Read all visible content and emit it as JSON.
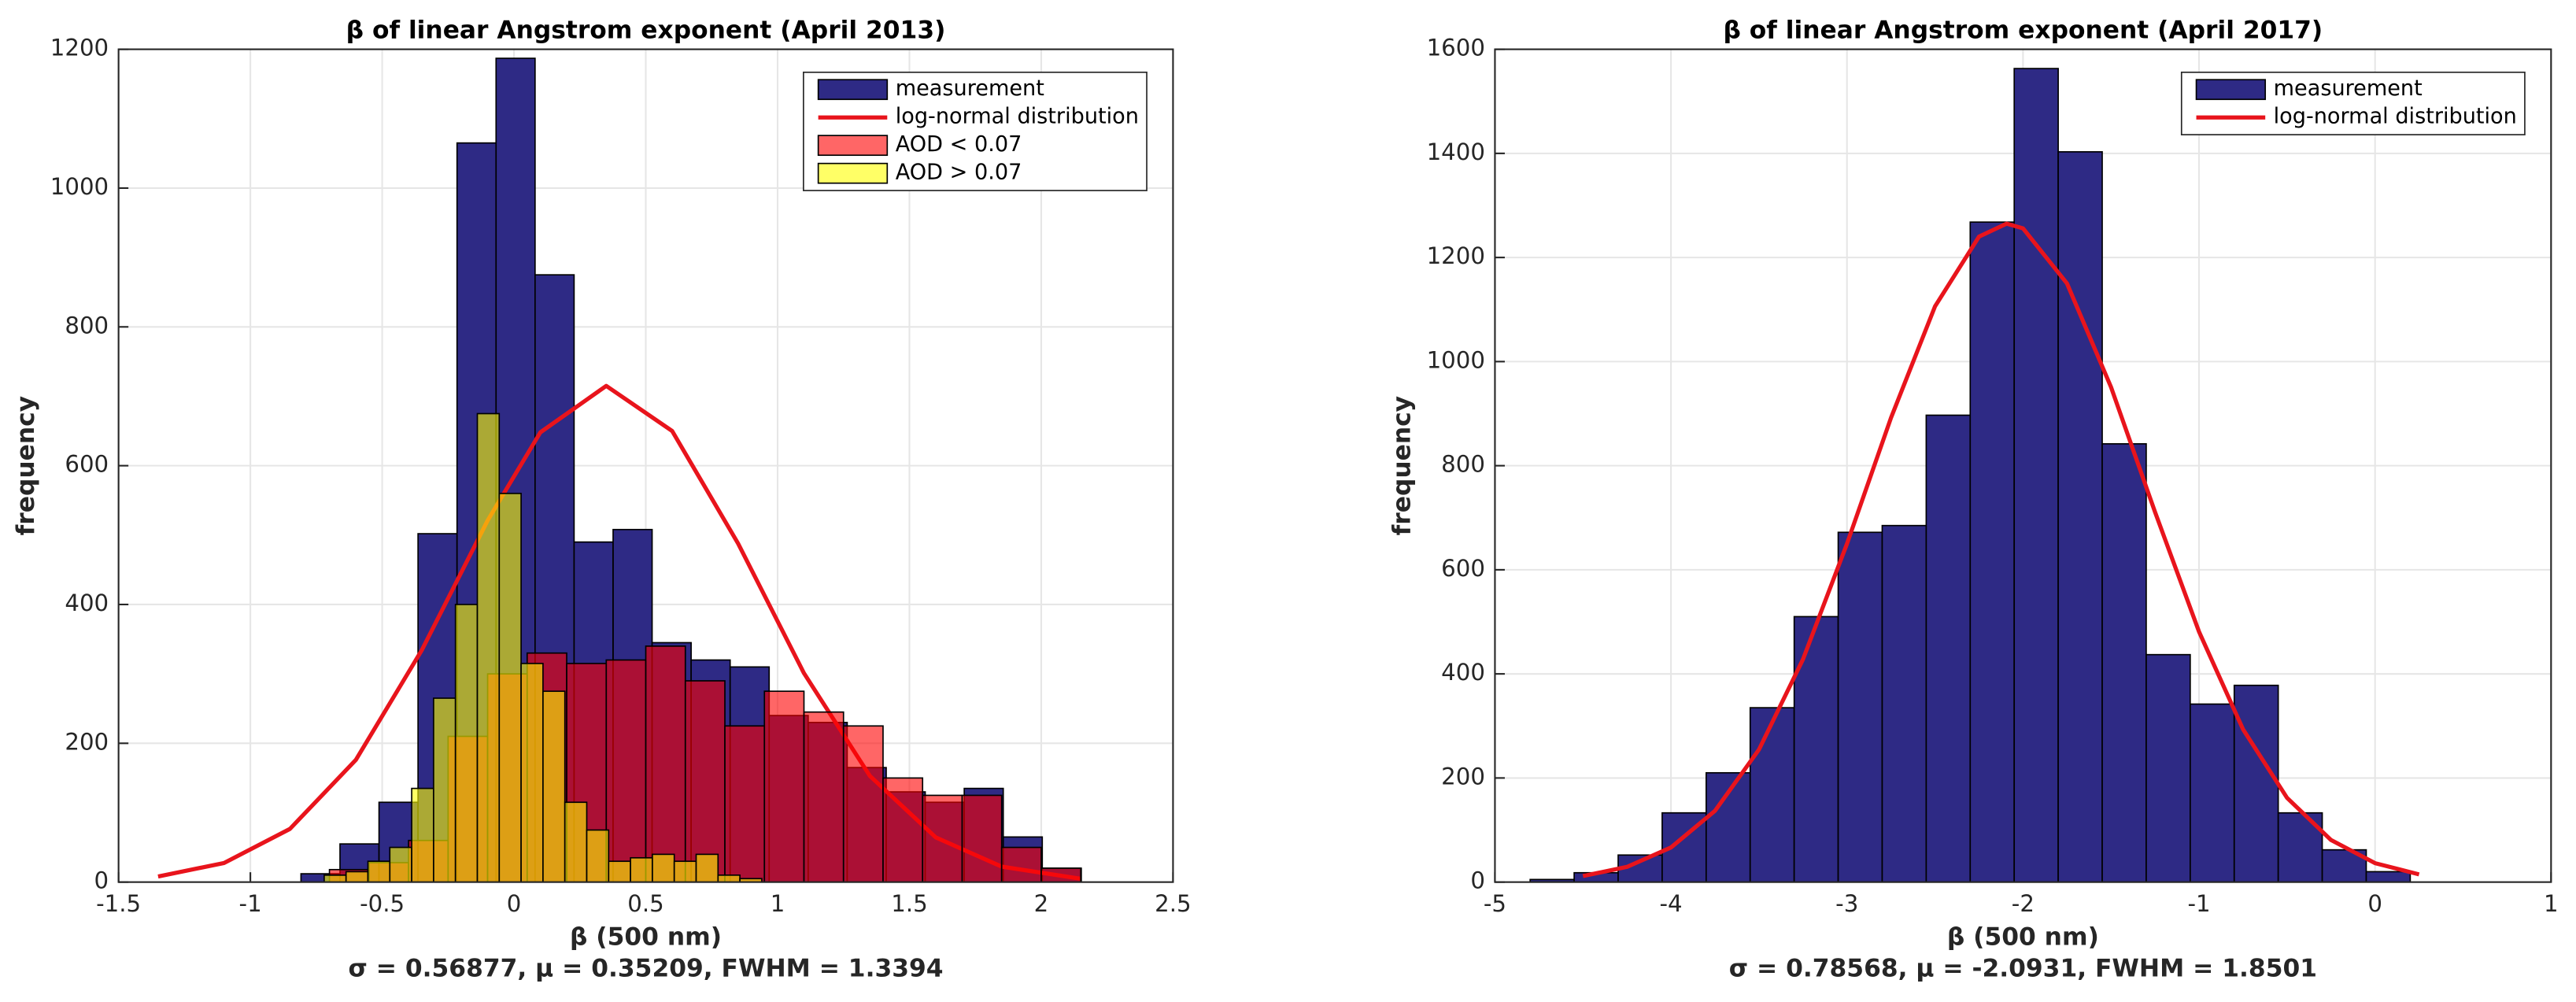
{
  "chart_data": [
    {
      "type": "histogram",
      "title": "β of linear Angstrom exponent (April 2013)",
      "xlabel": "β (500 nm)",
      "ylabel": "frequency",
      "subtitle": "σ = 0.56877, μ = 0.35209, FWHM = 1.3394",
      "xlim": [
        -1.5,
        2.5
      ],
      "xticks": [
        -1.5,
        -1,
        -0.5,
        0,
        0.5,
        1,
        1.5,
        2,
        2.5
      ],
      "ylim": [
        0,
        1200
      ],
      "yticks": [
        0,
        200,
        400,
        600,
        800,
        1000,
        1200
      ],
      "grid": true,
      "legend": "northeast",
      "series": [
        {
          "name": "measurement",
          "color": "#2e2a85",
          "alpha": 1,
          "bins": [
            -0.808,
            -0.66,
            -0.512,
            -0.364,
            -0.216,
            -0.068,
            0.08,
            0.228,
            0.376,
            0.524,
            0.672,
            0.82,
            0.968,
            1.116,
            1.264,
            1.412,
            1.56,
            1.708,
            1.856,
            2.004,
            2.152
          ],
          "values": [
            12,
            55,
            115,
            502,
            1065,
            1187,
            875,
            490,
            508,
            345,
            320,
            310,
            240,
            230,
            165,
            130,
            115,
            135,
            65,
            20
          ]
        },
        {
          "name": "log-normal distribution",
          "type": "line",
          "color": "#e8141c",
          "x": [
            -1.35,
            -1.1,
            -0.85,
            -0.6,
            -0.35,
            -0.1,
            0.1,
            0.35,
            0.6,
            0.85,
            1.1,
            1.35,
            1.6,
            1.85,
            2.15
          ],
          "values": [
            8.1,
            27.5,
            76.6,
            176,
            334,
            521,
            648,
            715,
            650,
            488,
            301,
            153,
            64.4,
            22.3,
            4.8
          ]
        },
        {
          "name": "AOD < 0.07",
          "color": "#ff0000",
          "alpha": 0.6,
          "bins": [
            -0.7,
            -0.55,
            -0.4,
            -0.25,
            -0.1,
            0.05,
            0.2,
            0.35,
            0.5,
            0.65,
            0.8,
            0.95,
            1.1,
            1.25,
            1.4,
            1.55,
            1.7,
            1.85,
            2.0,
            2.15
          ],
          "values": [
            18,
            28,
            60,
            210,
            300,
            330,
            315,
            320,
            340,
            290,
            225,
            275,
            245,
            225,
            150,
            125,
            125,
            50,
            20
          ]
        },
        {
          "name": "AOD > 0.07",
          "color": "#ffff00",
          "alpha": 0.6,
          "bins": [
            -0.72,
            -0.637,
            -0.554,
            -0.471,
            -0.388,
            -0.305,
            -0.222,
            -0.139,
            -0.056,
            0.027,
            0.11,
            0.193,
            0.276,
            0.359,
            0.442,
            0.525,
            0.608,
            0.691,
            0.774,
            0.857,
            0.94
          ],
          "values": [
            10,
            15,
            30,
            50,
            135,
            265,
            400,
            675,
            560,
            315,
            275,
            115,
            75,
            30,
            35,
            40,
            30,
            40,
            10,
            5
          ]
        }
      ]
    },
    {
      "type": "histogram",
      "title": "β of linear Angstrom exponent (April 2017)",
      "xlabel": "β (500 nm)",
      "ylabel": "frequency",
      "subtitle": "σ = 0.78568, μ = -2.0931, FWHM = 1.8501",
      "xlim": [
        -5,
        1
      ],
      "xticks": [
        -5,
        -4,
        -3,
        -2,
        -1,
        0,
        1
      ],
      "ylim": [
        0,
        1600
      ],
      "yticks": [
        0,
        200,
        400,
        600,
        800,
        1000,
        1200,
        1400,
        1600
      ],
      "grid": true,
      "legend": "northeast",
      "series": [
        {
          "name": "measurement",
          "color": "#2e2a85",
          "alpha": 1,
          "bins": [
            -4.8,
            -4.55,
            -4.3,
            -4.05,
            -3.8,
            -3.55,
            -3.3,
            -3.05,
            -2.8,
            -2.55,
            -2.3,
            -2.05,
            -1.8,
            -1.55,
            -1.3,
            -1.05,
            -0.8,
            -0.55,
            -0.3,
            -0.05,
            0.2
          ],
          "values": [
            5,
            18,
            52,
            133,
            210,
            335,
            510,
            672,
            685,
            897,
            1268,
            1563,
            1403,
            842,
            437,
            342,
            378,
            133,
            62,
            20
          ]
        },
        {
          "name": "log-normal distribution",
          "type": "line",
          "color": "#e8141c",
          "x": [
            -4.5,
            -4.25,
            -4,
            -3.75,
            -3.5,
            -3.25,
            -3,
            -2.75,
            -2.5,
            -2.25,
            -2.0931,
            -2,
            -1.75,
            -1.5,
            -1.25,
            -1,
            -0.75,
            -0.5,
            -0.25,
            0,
            0.25
          ],
          "values": [
            11.6,
            29.2,
            66.5,
            136.9,
            254.7,
            428,
            650,
            892,
            1106,
            1240,
            1265,
            1256,
            1150,
            951,
            711,
            481,
            293.5,
            161.9,
            80.8,
            36.4,
            14.8
          ]
        }
      ]
    }
  ]
}
